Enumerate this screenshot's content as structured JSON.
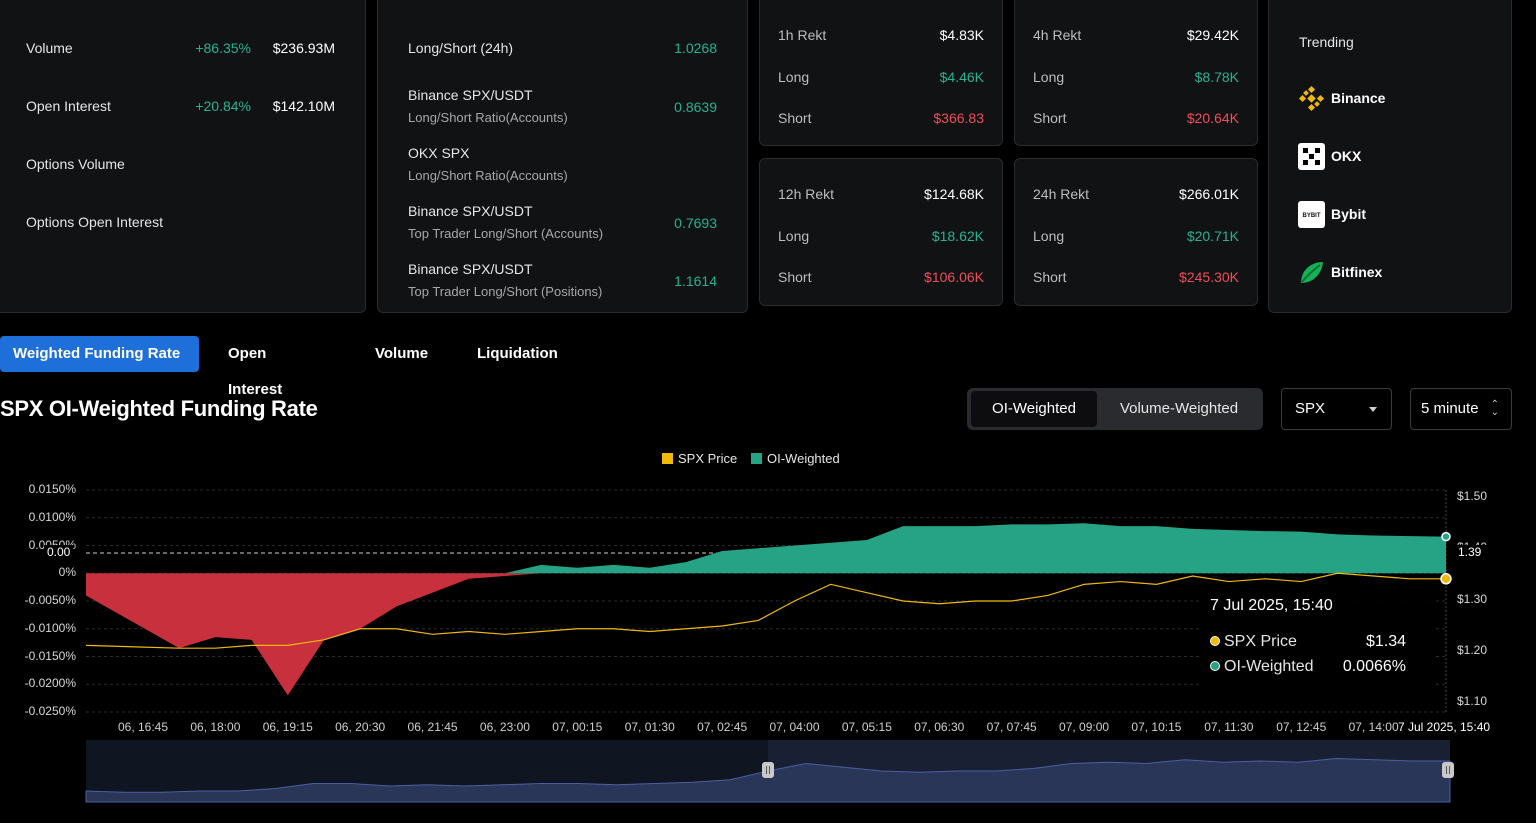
{
  "stats_card": {
    "rows": [
      {
        "label": "Volume",
        "change": "+86.35%",
        "value": "$236.93M"
      },
      {
        "label": "Open Interest",
        "change": "+20.84%",
        "value": "$142.10M"
      },
      {
        "label": "Options Volume",
        "change": "",
        "value": ""
      },
      {
        "label": "Options Open Interest",
        "change": "",
        "value": ""
      }
    ]
  },
  "ratio_card": {
    "rows": [
      {
        "title": "Long/Short (24h)",
        "sub": "",
        "value": "1.0268"
      },
      {
        "title": "Binance SPX/USDT",
        "sub": "Long/Short Ratio(Accounts)",
        "value": "0.8639"
      },
      {
        "title": "OKX SPX",
        "sub": "Long/Short Ratio(Accounts)",
        "value": ""
      },
      {
        "title": "Binance SPX/USDT",
        "sub": "Top Trader Long/Short (Accounts)",
        "value": "0.7693"
      },
      {
        "title": "Binance SPX/USDT",
        "sub": "Top Trader Long/Short (Positions)",
        "value": "1.1614"
      }
    ]
  },
  "rekt": [
    {
      "title": "1h Rekt",
      "total": "$4.83K",
      "long_label": "Long",
      "long": "$4.46K",
      "short_label": "Short",
      "short": "$366.83"
    },
    {
      "title": "4h Rekt",
      "total": "$29.42K",
      "long_label": "Long",
      "long": "$8.78K",
      "short_label": "Short",
      "short": "$20.64K"
    },
    {
      "title": "12h Rekt",
      "total": "$124.68K",
      "long_label": "Long",
      "long": "$18.62K",
      "short_label": "Short",
      "short": "$106.06K"
    },
    {
      "title": "24h Rekt",
      "total": "$266.01K",
      "long_label": "Long",
      "long": "$20.71K",
      "short_label": "Short",
      "short": "$245.30K"
    }
  ],
  "trending": {
    "title": "Trending",
    "items": [
      {
        "name": "Binance",
        "icon": "binance-icon"
      },
      {
        "name": "OKX",
        "icon": "okx-icon"
      },
      {
        "name": "Bybit",
        "icon": "bybit-icon",
        "icon_text": "BYBIT"
      },
      {
        "name": "Bitfinex",
        "icon": "bitfinex-icon"
      }
    ]
  },
  "tabs": [
    "Weighted Funding Rate",
    "Open Interest",
    "Volume",
    "Liquidation"
  ],
  "chart_title": "SPX OI-Weighted Funding Rate",
  "weighting": {
    "options": [
      "OI-Weighted",
      "Volume-Weighted"
    ],
    "selected": "OI-Weighted"
  },
  "symbol_select": {
    "value": "SPX"
  },
  "interval_select": {
    "value": "5 minute"
  },
  "colors": {
    "price": "#f0b90b",
    "funding_pos": "#26a384",
    "funding_neg": "#c9303d",
    "accent": "#1e6fd9"
  },
  "chart_data": {
    "type": "area",
    "legend": [
      {
        "name": "SPX Price",
        "color": "#f0b90b"
      },
      {
        "name": "OI-Weighted",
        "color": "#26a384"
      }
    ],
    "legend_position": "top-center",
    "y_left_ticks": [
      "0.0150%",
      "0.0100%",
      "0.0050%",
      "0%",
      "-0.0050%",
      "-0.0100%",
      "-0.0150%",
      "-0.0200%",
      "-0.0250%"
    ],
    "y_left_range": [
      -0.025,
      0.015
    ],
    "y_right_ticks": [
      "$1.50",
      "$1.40",
      "$1.30",
      "$1.20",
      "$1.10"
    ],
    "y_right_range": [
      1.1,
      1.5
    ],
    "crosshair_label_left": "0.00",
    "crosshair_label_right": "1.39",
    "x_ticks": [
      "06, 16:45",
      "06, 18:00",
      "06, 19:15",
      "06, 20:30",
      "06, 21:45",
      "06, 23:00",
      "07, 00:15",
      "07, 01:30",
      "07, 02:45",
      "07, 04:00",
      "07, 05:15",
      "07, 06:30",
      "07, 07:45",
      "07, 09:00",
      "07, 10:15",
      "07, 11:30",
      "07, 12:45",
      "07, 14:00",
      "7 Jul 2025, 15:40"
    ],
    "funding_series": {
      "name": "OI-Weighted",
      "x_index": [
        0,
        0.5,
        1,
        1.5,
        2,
        2.5,
        3,
        3.5,
        4,
        4.5,
        5,
        5.5,
        6,
        6.5,
        7,
        7.5,
        8,
        8.5,
        9,
        9.5,
        10,
        10.5,
        11,
        11.5,
        12,
        12.5,
        13,
        13.5,
        14,
        14.5,
        15,
        15.5,
        16,
        16.5,
        17,
        17.5,
        18
      ],
      "values": [
        -0.004,
        -0.0135,
        -0.0115,
        -0.012,
        -0.022,
        -0.012,
        -0.01,
        -0.006,
        -0.0035,
        -0.001,
        -0.0005,
        0.0015,
        0.001,
        0.0015,
        0.001,
        0.002,
        0.004,
        0.0045,
        0.005,
        0.0055,
        0.006,
        0.0085,
        0.0085,
        0.0085,
        0.0088,
        0.0088,
        0.009,
        0.0085,
        0.0085,
        0.008,
        0.0078,
        0.0076,
        0.0075,
        0.007,
        0.0068,
        0.0067,
        0.0066
      ]
    },
    "price_series": {
      "name": "SPX Price",
      "x_index": [
        0,
        0.5,
        1,
        1.5,
        2,
        2.5,
        3,
        3.5,
        4,
        4.5,
        5,
        5.5,
        6,
        6.5,
        7,
        7.5,
        8,
        8.5,
        9,
        9.5,
        10,
        10.5,
        11,
        11.5,
        12,
        12.5,
        13,
        13.5,
        14,
        14.5,
        15,
        15.5,
        16,
        16.5,
        17,
        17.5,
        18
      ],
      "values": [
        1.22,
        1.215,
        1.215,
        1.22,
        1.22,
        1.23,
        1.25,
        1.25,
        1.24,
        1.245,
        1.24,
        1.245,
        1.25,
        1.25,
        1.245,
        1.25,
        1.255,
        1.265,
        1.3,
        1.33,
        1.315,
        1.3,
        1.295,
        1.3,
        1.3,
        1.31,
        1.33,
        1.335,
        1.33,
        1.345,
        1.335,
        1.34,
        1.335,
        1.35,
        1.345,
        1.34,
        1.34
      ]
    },
    "tooltip": {
      "title": "7 Jul 2025, 15:40",
      "rows": [
        {
          "name": "SPX Price",
          "value": "$1.34",
          "color": "#f0b90b"
        },
        {
          "name": "OI-Weighted",
          "value": "0.0066%",
          "color": "#26a384"
        }
      ]
    },
    "navigator": {
      "range_start_fraction": 0.5,
      "range_end_fraction": 1.0
    }
  }
}
